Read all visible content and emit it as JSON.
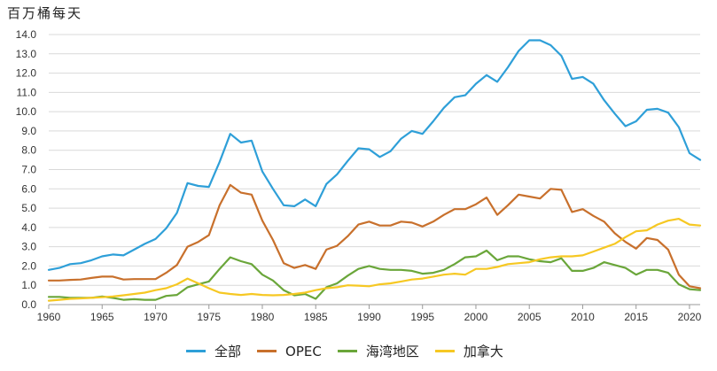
{
  "chart_data": {
    "type": "line",
    "title": "",
    "ylabel": "百万桶每天",
    "xlabel": "",
    "xlim": [
      1960,
      2021
    ],
    "ylim": [
      0,
      14
    ],
    "yticks": [
      "0.0",
      "1.0",
      "2.0",
      "3.0",
      "4.0",
      "5.0",
      "6.0",
      "7.0",
      "8.0",
      "9.0",
      "10.0",
      "11.0",
      "12.0",
      "13.0",
      "14.0"
    ],
    "xticks": [
      "1960",
      "1965",
      "1970",
      "1975",
      "1980",
      "1985",
      "1990",
      "1995",
      "2000",
      "2005",
      "2010",
      "2015",
      "2020"
    ],
    "grid": "horizontal",
    "legend_position": "bottom",
    "x": [
      1960,
      1961,
      1962,
      1963,
      1964,
      1965,
      1966,
      1967,
      1968,
      1969,
      1970,
      1971,
      1972,
      1973,
      1974,
      1975,
      1976,
      1977,
      1978,
      1979,
      1980,
      1981,
      1982,
      1983,
      1984,
      1985,
      1986,
      1987,
      1988,
      1989,
      1990,
      1991,
      1992,
      1993,
      1994,
      1995,
      1996,
      1997,
      1998,
      1999,
      2000,
      2001,
      2002,
      2003,
      2004,
      2005,
      2006,
      2007,
      2008,
      2009,
      2010,
      2011,
      2012,
      2013,
      2014,
      2015,
      2016,
      2017,
      2018,
      2019,
      2020,
      2021
    ],
    "series": [
      {
        "name": "全部",
        "color": "#2E9FD8",
        "values": [
          1.8,
          1.9,
          2.1,
          2.15,
          2.3,
          2.5,
          2.6,
          2.55,
          2.85,
          3.15,
          3.4,
          3.95,
          4.75,
          6.3,
          6.15,
          6.1,
          7.4,
          8.85,
          8.4,
          8.5,
          6.9,
          6.0,
          5.15,
          5.1,
          5.45,
          5.1,
          6.25,
          6.75,
          7.45,
          8.1,
          8.05,
          7.65,
          7.95,
          8.6,
          9.0,
          8.85,
          9.5,
          10.2,
          10.75,
          10.85,
          11.45,
          11.9,
          11.55,
          12.3,
          13.15,
          13.7,
          13.7,
          13.45,
          12.9,
          11.7,
          11.8,
          11.45,
          10.6,
          9.9,
          9.25,
          9.5,
          10.1,
          10.15,
          9.95,
          9.2,
          7.85,
          7.5
        ]
      },
      {
        "name": "OPEC",
        "color": "#C8702C",
        "values": [
          1.25,
          1.25,
          1.28,
          1.3,
          1.38,
          1.45,
          1.45,
          1.3,
          1.32,
          1.32,
          1.32,
          1.65,
          2.05,
          3.0,
          3.25,
          3.6,
          5.15,
          6.2,
          5.8,
          5.7,
          4.35,
          3.35,
          2.15,
          1.9,
          2.05,
          1.85,
          2.85,
          3.05,
          3.55,
          4.15,
          4.3,
          4.1,
          4.1,
          4.3,
          4.25,
          4.05,
          4.3,
          4.65,
          4.95,
          4.95,
          5.2,
          5.55,
          4.65,
          5.15,
          5.7,
          5.6,
          5.5,
          6.0,
          5.95,
          4.8,
          4.95,
          4.6,
          4.3,
          3.7,
          3.25,
          2.9,
          3.45,
          3.35,
          2.85,
          1.55,
          0.95,
          0.85
        ]
      },
      {
        "name": "海湾地区",
        "color": "#6AA63A",
        "values": [
          0.4,
          0.4,
          0.35,
          0.35,
          0.35,
          0.42,
          0.35,
          0.25,
          0.28,
          0.25,
          0.25,
          0.45,
          0.5,
          0.9,
          1.05,
          1.2,
          1.85,
          2.45,
          2.25,
          2.1,
          1.55,
          1.25,
          0.75,
          0.48,
          0.55,
          0.3,
          0.9,
          1.1,
          1.5,
          1.85,
          2.0,
          1.85,
          1.8,
          1.8,
          1.75,
          1.6,
          1.65,
          1.8,
          2.1,
          2.45,
          2.5,
          2.8,
          2.3,
          2.5,
          2.5,
          2.35,
          2.25,
          2.2,
          2.4,
          1.75,
          1.75,
          1.9,
          2.2,
          2.05,
          1.9,
          1.55,
          1.8,
          1.8,
          1.65,
          1.05,
          0.8,
          0.75
        ]
      },
      {
        "name": "加拿大",
        "color": "#F6C823",
        "values": [
          0.2,
          0.25,
          0.3,
          0.32,
          0.35,
          0.38,
          0.42,
          0.48,
          0.55,
          0.62,
          0.75,
          0.85,
          1.05,
          1.35,
          1.1,
          0.85,
          0.62,
          0.55,
          0.5,
          0.55,
          0.5,
          0.48,
          0.5,
          0.55,
          0.62,
          0.75,
          0.85,
          0.9,
          1.0,
          0.98,
          0.95,
          1.05,
          1.1,
          1.2,
          1.3,
          1.35,
          1.45,
          1.55,
          1.6,
          1.55,
          1.85,
          1.85,
          1.95,
          2.1,
          2.15,
          2.2,
          2.35,
          2.45,
          2.5,
          2.5,
          2.55,
          2.75,
          2.95,
          3.15,
          3.5,
          3.8,
          3.85,
          4.15,
          4.35,
          4.45,
          4.15,
          4.1
        ]
      }
    ]
  }
}
